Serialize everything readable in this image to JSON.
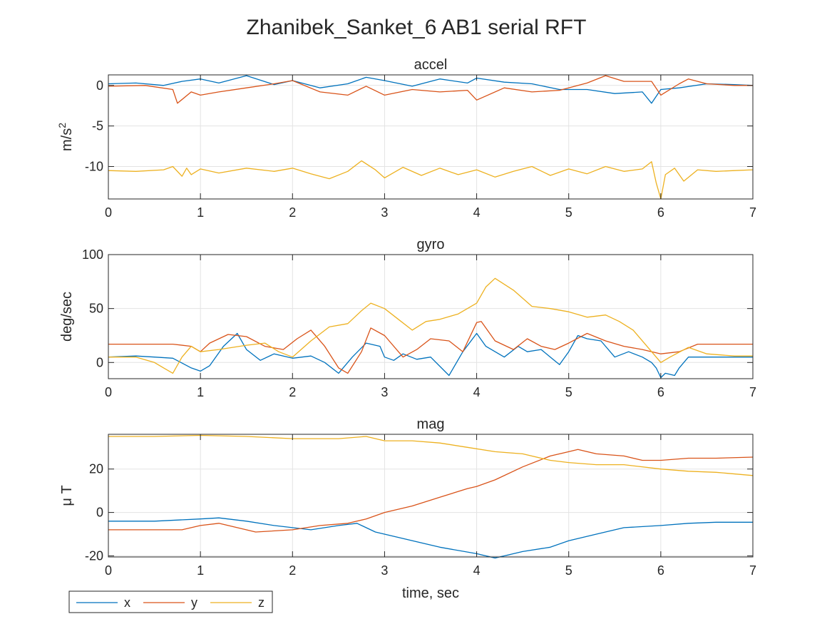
{
  "colors": {
    "x": "#0072BD",
    "y": "#D95319",
    "z": "#EDB120"
  },
  "chart_data": {
    "title": "Zhanibek_Sanket_6 AB1 serial RFT",
    "xlabel": "time, sec",
    "legend": {
      "entries": [
        "x",
        "y",
        "z"
      ],
      "placement": "bottom-left"
    },
    "grid": true,
    "panels": [
      {
        "type": "line",
        "title": "accel",
        "ylabel": "m/s",
        "ylabel_sup": "2",
        "xlim": [
          0,
          7
        ],
        "ylim": [
          -14,
          1.3
        ],
        "xticks": [
          0,
          1,
          2,
          3,
          4,
          5,
          6,
          7
        ],
        "yticks": [
          -10,
          -5,
          0
        ],
        "series": [
          {
            "name": "x",
            "x": [
              0,
              0.3,
              0.6,
              0.8,
              1.0,
              1.2,
              1.5,
              1.8,
              2.0,
              2.3,
              2.6,
              2.8,
              3.0,
              3.3,
              3.6,
              3.9,
              4.0,
              4.3,
              4.6,
              4.9,
              5.2,
              5.5,
              5.8,
              5.9,
              6.0,
              6.2,
              6.5,
              6.8,
              7.0
            ],
            "y": [
              0.2,
              0.3,
              0,
              0.5,
              0.8,
              0.3,
              1.2,
              0.1,
              0.6,
              -0.3,
              0.2,
              1.0,
              0.6,
              -0.1,
              0.8,
              0.3,
              0.9,
              0.4,
              0.2,
              -0.5,
              -0.5,
              -1.0,
              -0.8,
              -2.2,
              -0.5,
              -0.3,
              0.2,
              0.1,
              0
            ]
          },
          {
            "name": "y",
            "x": [
              0,
              0.4,
              0.7,
              0.75,
              0.9,
              1.0,
              1.2,
              1.5,
              1.8,
              2.0,
              2.3,
              2.6,
              2.8,
              3.0,
              3.3,
              3.6,
              3.9,
              4.0,
              4.3,
              4.6,
              4.9,
              5.2,
              5.4,
              5.6,
              5.9,
              6.0,
              6.2,
              6.3,
              6.5,
              6.8,
              7.0
            ],
            "y": [
              -0.1,
              0,
              -0.5,
              -2.2,
              -0.8,
              -1.2,
              -0.8,
              -0.3,
              0.2,
              0.6,
              -0.8,
              -1.2,
              -0.1,
              -1.2,
              -0.5,
              -0.8,
              -0.6,
              -1.8,
              -0.3,
              -0.8,
              -0.6,
              0.3,
              1.2,
              0.5,
              0.5,
              -1.2,
              0.2,
              0.8,
              0.2,
              0,
              0
            ]
          },
          {
            "name": "z",
            "x": [
              0,
              0.3,
              0.6,
              0.7,
              0.8,
              0.85,
              0.9,
              1.0,
              1.2,
              1.5,
              1.8,
              2.0,
              2.2,
              2.4,
              2.6,
              2.75,
              2.9,
              3.0,
              3.2,
              3.4,
              3.6,
              3.8,
              4.0,
              4.2,
              4.4,
              4.6,
              4.8,
              5.0,
              5.2,
              5.4,
              5.6,
              5.8,
              5.9,
              5.95,
              6.0,
              6.05,
              6.15,
              6.25,
              6.4,
              6.6,
              6.8,
              7.0
            ],
            "y": [
              -10.5,
              -10.6,
              -10.4,
              -10.0,
              -11.2,
              -10.2,
              -11.0,
              -10.3,
              -10.8,
              -10.2,
              -10.6,
              -10.2,
              -10.9,
              -11.5,
              -10.6,
              -9.3,
              -10.4,
              -11.4,
              -10.1,
              -11.1,
              -10.2,
              -11.0,
              -10.4,
              -11.3,
              -10.6,
              -10.0,
              -11.1,
              -10.3,
              -10.9,
              -10.0,
              -10.6,
              -10.3,
              -9.4,
              -12.0,
              -14.0,
              -11.0,
              -10.2,
              -11.8,
              -10.4,
              -10.6,
              -10.5,
              -10.4
            ]
          }
        ]
      },
      {
        "type": "line",
        "title": "gyro",
        "ylabel": "deg/sec",
        "xlim": [
          0,
          7
        ],
        "ylim": [
          -15,
          100
        ],
        "xticks": [
          0,
          1,
          2,
          3,
          4,
          5,
          6,
          7
        ],
        "yticks": [
          0,
          50,
          100
        ],
        "series": [
          {
            "name": "x",
            "x": [
              0,
              0.3,
              0.5,
              0.7,
              0.9,
              1.0,
              1.1,
              1.25,
              1.4,
              1.5,
              1.65,
              1.8,
              2.0,
              2.2,
              2.35,
              2.5,
              2.65,
              2.8,
              2.95,
              3.0,
              3.1,
              3.2,
              3.35,
              3.5,
              3.7,
              3.85,
              4.0,
              4.1,
              4.3,
              4.45,
              4.55,
              4.7,
              4.8,
              4.9,
              5.0,
              5.1,
              5.2,
              5.35,
              5.5,
              5.65,
              5.8,
              5.9,
              5.95,
              6.0,
              6.05,
              6.15,
              6.2,
              6.3,
              6.5,
              6.8,
              7.0
            ],
            "y": [
              5,
              6,
              5,
              4,
              -5,
              -8,
              -3,
              15,
              27,
              12,
              2,
              8,
              4,
              6,
              0,
              -10,
              5,
              18,
              15,
              5,
              2,
              8,
              3,
              5,
              -12,
              10,
              27,
              15,
              5,
              15,
              10,
              12,
              5,
              -2,
              10,
              25,
              22,
              20,
              5,
              10,
              5,
              0,
              -5,
              -14,
              -10,
              -12,
              -5,
              5,
              5,
              5,
              5
            ]
          },
          {
            "name": "y",
            "x": [
              0,
              0.3,
              0.5,
              0.7,
              0.9,
              1.0,
              1.1,
              1.3,
              1.5,
              1.7,
              1.9,
              2.05,
              2.2,
              2.35,
              2.5,
              2.6,
              2.75,
              2.85,
              3.0,
              3.2,
              3.35,
              3.5,
              3.7,
              3.85,
              4.0,
              4.05,
              4.2,
              4.4,
              4.55,
              4.7,
              4.85,
              5.0,
              5.2,
              5.4,
              5.6,
              5.8,
              6.0,
              6.2,
              6.4,
              6.7,
              7.0
            ],
            "y": [
              17,
              17,
              17,
              17,
              15,
              10,
              18,
              26,
              24,
              15,
              12,
              22,
              30,
              15,
              -5,
              -10,
              10,
              32,
              25,
              5,
              12,
              22,
              20,
              10,
              37,
              38,
              20,
              12,
              22,
              15,
              12,
              18,
              27,
              20,
              15,
              12,
              8,
              10,
              17,
              17,
              17
            ]
          },
          {
            "name": "z",
            "x": [
              0,
              0.3,
              0.5,
              0.6,
              0.7,
              0.8,
              0.9,
              1.0,
              1.2,
              1.5,
              1.7,
              1.85,
              2.0,
              2.2,
              2.4,
              2.6,
              2.75,
              2.85,
              3.0,
              3.15,
              3.3,
              3.45,
              3.6,
              3.8,
              4.0,
              4.1,
              4.2,
              4.4,
              4.6,
              4.8,
              5.0,
              5.2,
              5.4,
              5.55,
              5.7,
              5.85,
              6.0,
              6.1,
              6.3,
              6.5,
              6.8,
              7.0
            ],
            "y": [
              5,
              5,
              0,
              -5,
              -10,
              5,
              15,
              10,
              12,
              16,
              18,
              10,
              5,
              20,
              33,
              36,
              48,
              55,
              50,
              40,
              30,
              38,
              40,
              45,
              55,
              70,
              78,
              67,
              52,
              50,
              47,
              42,
              44,
              38,
              30,
              15,
              0,
              5,
              14,
              8,
              6,
              6
            ]
          }
        ]
      },
      {
        "type": "line",
        "title": "mag",
        "ylabel": "μ T",
        "xlim": [
          0,
          7
        ],
        "ylim": [
          -20.5,
          36
        ],
        "xticks": [
          0,
          1,
          2,
          3,
          4,
          5,
          6,
          7
        ],
        "yticks": [
          -20,
          0,
          20
        ],
        "series": [
          {
            "name": "x",
            "x": [
              0,
              0.5,
              1.0,
              1.2,
              1.5,
              1.8,
              2.0,
              2.2,
              2.5,
              2.7,
              2.9,
              3.2,
              3.6,
              4.0,
              4.2,
              4.5,
              4.8,
              5.0,
              5.3,
              5.6,
              6.0,
              6.3,
              6.6,
              7.0
            ],
            "y": [
              -4,
              -4,
              -3,
              -2.5,
              -4,
              -6,
              -7,
              -8,
              -6,
              -5,
              -9,
              -12,
              -16,
              -19,
              -21,
              -18,
              -16,
              -13,
              -10,
              -7,
              -6,
              -5,
              -4.5,
              -4.5
            ]
          },
          {
            "name": "y",
            "x": [
              0,
              0.3,
              0.6,
              0.8,
              1.0,
              1.2,
              1.4,
              1.6,
              2.0,
              2.3,
              2.6,
              2.8,
              3.0,
              3.3,
              3.6,
              3.9,
              4.0,
              4.2,
              4.5,
              4.8,
              5.0,
              5.1,
              5.3,
              5.6,
              5.8,
              6.0,
              6.3,
              6.6,
              7.0
            ],
            "y": [
              -8,
              -8,
              -8,
              -8,
              -6,
              -5,
              -7,
              -9,
              -8,
              -6,
              -5,
              -3,
              0,
              3,
              7,
              11,
              12,
              15,
              21,
              26,
              28,
              29,
              27,
              26,
              24,
              24,
              25,
              25,
              25.5
            ]
          },
          {
            "name": "z",
            "x": [
              0,
              0.5,
              1.0,
              1.5,
              2.0,
              2.5,
              2.8,
              3.0,
              3.3,
              3.6,
              3.9,
              4.2,
              4.5,
              4.8,
              5.0,
              5.3,
              5.6,
              6.0,
              6.3,
              6.6,
              7.0
            ],
            "y": [
              35,
              35,
              35.5,
              35,
              34,
              34,
              35,
              33,
              33,
              32,
              30,
              28,
              27,
              24,
              23,
              22,
              22,
              20,
              19,
              18.5,
              17
            ]
          }
        ]
      }
    ]
  }
}
